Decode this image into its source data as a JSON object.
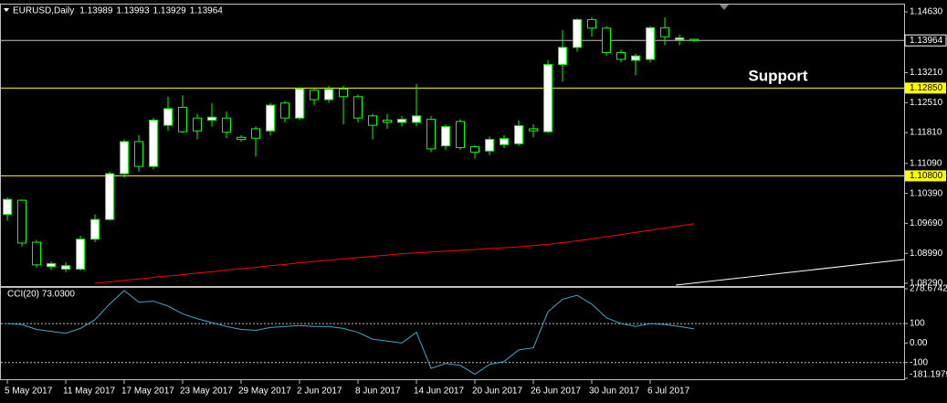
{
  "chart_data": [
    {
      "type": "candlestick",
      "title": "EURUSD,Daily",
      "header_values": [
        1.13989,
        1.13993,
        1.13929,
        1.13964
      ],
      "categories": [
        "5 May 2017",
        null,
        null,
        null,
        "11 May 2017",
        null,
        null,
        null,
        "17 May 2017",
        null,
        null,
        null,
        "23 May 2017",
        null,
        null,
        null,
        "29 May 2017",
        null,
        null,
        null,
        "2 Jun 2017",
        null,
        null,
        null,
        "8 Jun 2017",
        null,
        null,
        null,
        "14 Jun 2017",
        null,
        null,
        null,
        "20 Jun 2017",
        null,
        null,
        null,
        "26 Jun 2017",
        null,
        null,
        null,
        "30 Jun 2017",
        null,
        null,
        null,
        "6 Jul 2017",
        null,
        null,
        null
      ],
      "open": [
        1.099,
        1.1023,
        1.0925,
        1.0868,
        1.0862,
        1.0862,
        1.0932,
        1.0978,
        1.1085,
        1.116,
        1.1102,
        1.1198,
        1.124,
        1.1215,
        1.121,
        1.1215,
        1.117,
        1.119,
        1.1185,
        1.125,
        1.1215,
        1.128,
        1.1258,
        1.1283,
        1.1265,
        1.122,
        1.121,
        1.1205,
        1.1205,
        1.1212,
        1.115,
        1.1207,
        1.1148,
        1.1138,
        1.1153,
        1.1155,
        1.119,
        1.1183,
        1.134,
        1.138,
        1.1445,
        1.1425,
        1.1368,
        1.135,
        1.1352,
        1.1426,
        1.1398,
        1.13989
      ],
      "high": [
        1.103,
        1.1025,
        1.093,
        1.088,
        1.0878,
        1.094,
        1.099,
        1.109,
        1.1165,
        1.1175,
        1.1215,
        1.1265,
        1.1268,
        1.1225,
        1.125,
        1.123,
        1.1175,
        1.1195,
        1.125,
        1.1255,
        1.1287,
        1.1285,
        1.129,
        1.129,
        1.127,
        1.1225,
        1.1225,
        1.122,
        1.1295,
        1.122,
        1.12,
        1.1212,
        1.1152,
        1.1172,
        1.1175,
        1.121,
        1.12,
        1.135,
        1.142,
        1.1448,
        1.145,
        1.143,
        1.1375,
        1.1365,
        1.143,
        1.145,
        1.141,
        1.13993
      ],
      "low": [
        1.0975,
        1.0915,
        1.0865,
        1.086,
        1.0855,
        1.0858,
        1.0925,
        1.0975,
        1.1075,
        1.109,
        1.1095,
        1.1185,
        1.118,
        1.1165,
        1.1195,
        1.1168,
        1.116,
        1.1125,
        1.1175,
        1.1205,
        1.121,
        1.1245,
        1.125,
        1.12,
        1.1205,
        1.1165,
        1.119,
        1.1195,
        1.1195,
        1.1135,
        1.114,
        1.114,
        1.112,
        1.1128,
        1.1145,
        1.115,
        1.117,
        1.118,
        1.13,
        1.137,
        1.1405,
        1.136,
        1.1345,
        1.1315,
        1.1345,
        1.1385,
        1.1385,
        1.13929
      ],
      "close": [
        1.1025,
        1.0923,
        1.0872,
        1.0875,
        1.087,
        1.0932,
        1.0978,
        1.1085,
        1.116,
        1.1102,
        1.121,
        1.1237,
        1.1183,
        1.1185,
        1.1217,
        1.1182,
        1.1165,
        1.1168,
        1.1245,
        1.1215,
        1.1283,
        1.1258,
        1.1282,
        1.1265,
        1.1215,
        1.1198,
        1.1205,
        1.1212,
        1.122,
        1.1143,
        1.1195,
        1.1146,
        1.1135,
        1.1165,
        1.1167,
        1.1197,
        1.1185,
        1.134,
        1.138,
        1.1445,
        1.1425,
        1.1368,
        1.1352,
        1.136,
        1.1426,
        1.1405,
        1.1402,
        1.13964
      ],
      "up_color": "#ffffff",
      "down_color": "#000000",
      "wick_color": "#00ff00",
      "moving_average": {
        "color": "#ff0000",
        "values": [
          null,
          null,
          null,
          null,
          null,
          null,
          1.0829,
          1.0832,
          1.0836,
          1.0839,
          1.0843,
          1.0846,
          1.0849,
          1.0853,
          1.0856,
          1.086,
          1.0863,
          1.0866,
          1.087,
          1.0873,
          1.0877,
          1.088,
          1.0883,
          1.0886,
          1.0889,
          1.0892,
          1.0895,
          1.0898,
          1.09,
          1.0902,
          1.0904,
          1.0906,
          1.0908,
          1.091,
          1.0912,
          1.0914,
          1.0917,
          1.092,
          1.0924,
          1.0928,
          1.0933,
          1.0938,
          1.0943,
          1.0948,
          1.0953,
          1.0958,
          1.0963,
          1.0968
        ]
      },
      "levels": [
        {
          "value": 1.13964,
          "color": "#c0c0c0"
        },
        {
          "value": 1.1285,
          "label": "1.12850",
          "color": "#ffff00"
        },
        {
          "value": 1.108,
          "label": "1.10800",
          "color": "#ffff00"
        }
      ],
      "annotation": "Support",
      "ylim": [
        1.0829,
        1.1463
      ],
      "yticks": [
        {
          "value": 1.1463,
          "label": "1.14630"
        },
        {
          "value": 1.1321,
          "label": "1.13210"
        },
        {
          "value": 1.1251,
          "label": "1.12510"
        },
        {
          "value": 1.1181,
          "label": "1.11810"
        },
        {
          "value": 1.1109,
          "label": "1.11090"
        },
        {
          "value": 1.1039,
          "label": "1.10390"
        },
        {
          "value": 1.0969,
          "label": "1.09690"
        },
        {
          "value": 1.0899,
          "label": "1.08990"
        },
        {
          "value": 1.0829,
          "label": "1.08290"
        }
      ]
    },
    {
      "type": "line",
      "title": "CCI(20) 73.0300",
      "color": "#3fa9c9",
      "values": [
        100,
        95,
        70,
        60,
        50,
        75,
        120,
        200,
        270,
        210,
        215,
        190,
        150,
        125,
        105,
        85,
        70,
        65,
        80,
        85,
        90,
        85,
        85,
        75,
        55,
        20,
        10,
        0,
        55,
        -130,
        -105,
        -115,
        -160,
        -110,
        -95,
        -35,
        -25,
        160,
        225,
        245,
        200,
        130,
        100,
        85,
        100,
        95,
        85,
        73.03
      ],
      "levels": [
        100,
        -100
      ],
      "ylim": [
        -181.1979,
        278.6742
      ],
      "yticks": [
        278.6742,
        100,
        {
          "value": 0,
          "label": "0.00"
        },
        -100,
        -181.1979
      ]
    }
  ]
}
